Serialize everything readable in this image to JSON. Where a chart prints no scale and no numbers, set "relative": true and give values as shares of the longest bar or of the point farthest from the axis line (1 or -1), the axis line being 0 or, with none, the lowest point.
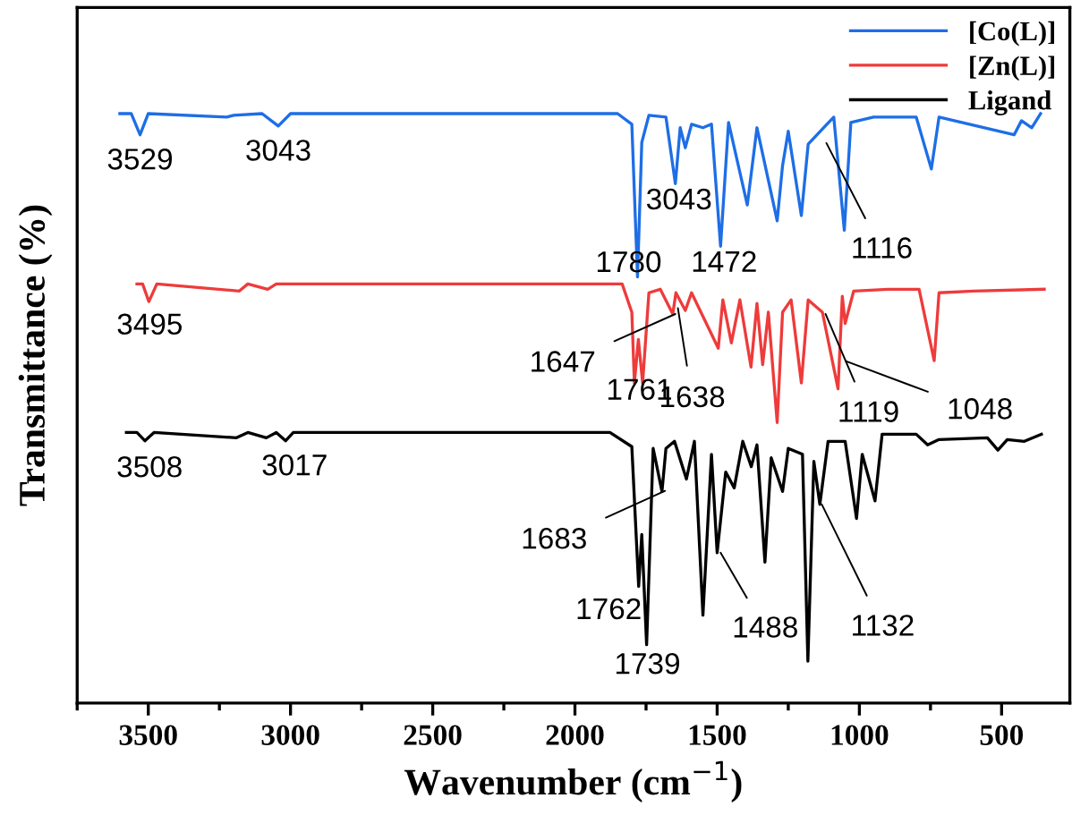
{
  "chart_data": {
    "type": "line",
    "relative": true,
    "xlabel": "Wavenumber (cm$^{−1}$)",
    "ylabel": "Transmittance (%)",
    "xlim": [
      3750,
      260
    ],
    "xticks": [
      3500,
      3000,
      2500,
      2000,
      1500,
      1000,
      500
    ],
    "tick_labels": "x",
    "grid": false,
    "legend": "top right",
    "marker": "none",
    "line_style": "solid",
    "series": [
      {
        "name": "[Co(L)]",
        "color": "#1e6ee6",
        "x": [
          3600,
          3560,
          3529,
          3500,
          3225,
          3200,
          3100,
          3043,
          3000,
          1850,
          1800,
          1780,
          1765,
          1740,
          1680,
          1647,
          1630,
          1612,
          1590,
          1550,
          1520,
          1488,
          1460,
          1394,
          1360,
          1289,
          1270,
          1250,
          1204,
          1180,
          1120,
          1090,
          1053,
          1030,
          950,
          800,
          747,
          720,
          456,
          430,
          394,
          363
        ],
        "values": [
          1.0,
          1.0,
          0.964,
          1.0,
          0.994,
          0.997,
          1.0,
          0.979,
          1.0,
          1.0,
          0.982,
          0.723,
          0.951,
          0.997,
          0.994,
          0.881,
          0.976,
          0.942,
          0.982,
          0.976,
          0.982,
          0.775,
          0.985,
          0.845,
          0.976,
          0.818,
          0.912,
          0.97,
          0.827,
          0.948,
          0.979,
          0.994,
          0.802,
          0.985,
          0.994,
          0.994,
          0.906,
          0.994,
          0.964,
          0.988,
          0.976,
          1.0
        ]
      },
      {
        "name": "[Zn(L)]",
        "color": "#ee3b3b",
        "x": [
          3540,
          3520,
          3498,
          3470,
          3180,
          3150,
          3080,
          3050,
          1834,
          1800,
          1791,
          1777,
          1762,
          1740,
          1700,
          1656,
          1645,
          1612,
          1590,
          1496,
          1480,
          1450,
          1420,
          1381,
          1360,
          1340,
          1320,
          1289,
          1270,
          1240,
          1204,
          1180,
          1130,
          1075,
          1060,
          1050,
          1020,
          900,
          790,
          737,
          720,
          600,
          350
        ],
        "values": [
          0.711,
          0.711,
          0.681,
          0.711,
          0.699,
          0.711,
          0.702,
          0.711,
          0.711,
          0.663,
          0.543,
          0.617,
          0.543,
          0.696,
          0.702,
          0.66,
          0.696,
          0.666,
          0.696,
          0.602,
          0.684,
          0.611,
          0.684,
          0.57,
          0.678,
          0.574,
          0.663,
          0.476,
          0.663,
          0.684,
          0.543,
          0.684,
          0.663,
          0.533,
          0.69,
          0.644,
          0.699,
          0.702,
          0.702,
          0.581,
          0.696,
          0.699,
          0.702
        ]
      },
      {
        "name": "Ligand",
        "color": "#000000",
        "x": [
          3577,
          3540,
          3512,
          3480,
          3190,
          3150,
          3085,
          3050,
          3017,
          2990,
          1877,
          1800,
          1776,
          1765,
          1748,
          1725,
          1694,
          1680,
          1650,
          1608,
          1580,
          1550,
          1520,
          1500,
          1470,
          1440,
          1410,
          1380,
          1360,
          1332,
          1310,
          1270,
          1250,
          1200,
          1181,
          1160,
          1139,
          1110,
          1050,
          1010,
          990,
          945,
          920,
          800,
          760,
          720,
          550,
          513,
          480,
          420,
          360
        ],
        "values": [
          0.459,
          0.459,
          0.445,
          0.459,
          0.45,
          0.459,
          0.45,
          0.459,
          0.445,
          0.459,
          0.459,
          0.435,
          0.198,
          0.286,
          0.099,
          0.432,
          0.359,
          0.432,
          0.444,
          0.38,
          0.444,
          0.149,
          0.422,
          0.255,
          0.392,
          0.365,
          0.444,
          0.401,
          0.438,
          0.239,
          0.416,
          0.359,
          0.432,
          0.422,
          0.071,
          0.41,
          0.337,
          0.444,
          0.444,
          0.313,
          0.422,
          0.343,
          0.456,
          0.456,
          0.438,
          0.447,
          0.45,
          0.429,
          0.447,
          0.444,
          0.456
        ]
      }
    ],
    "annotations": [
      {
        "text": "3529",
        "x": 3529,
        "y": 0.964
      },
      {
        "text": "3043",
        "x": 3043,
        "y": 0.979
      },
      {
        "text": "3043",
        "x": 1647,
        "y": 0.881
      },
      {
        "text": "1780",
        "x": 1780,
        "y": 0.723
      },
      {
        "text": "1472",
        "x": 1488,
        "y": 0.775
      },
      {
        "text": "1116",
        "x": 1116,
        "y": 0.95
      },
      {
        "text": "3495",
        "x": 3495,
        "y": 0.681
      },
      {
        "text": "1647",
        "x": 1647,
        "y": 0.66
      },
      {
        "text": "1638",
        "x": 1638,
        "y": 0.67
      },
      {
        "text": "1761",
        "x": 1761,
        "y": 0.543
      },
      {
        "text": "1119",
        "x": 1119,
        "y": 0.66
      },
      {
        "text": "1048",
        "x": 1048,
        "y": 0.58
      },
      {
        "text": "3508",
        "x": 3508,
        "y": 0.445
      },
      {
        "text": "3017",
        "x": 3017,
        "y": 0.445
      },
      {
        "text": "1683",
        "x": 1683,
        "y": 0.36
      },
      {
        "text": "1762",
        "x": 1762,
        "y": 0.198
      },
      {
        "text": "1739",
        "x": 1739,
        "y": 0.099
      },
      {
        "text": "1488",
        "x": 1488,
        "y": 0.255
      },
      {
        "text": "1132",
        "x": 1132,
        "y": 0.337
      }
    ]
  }
}
